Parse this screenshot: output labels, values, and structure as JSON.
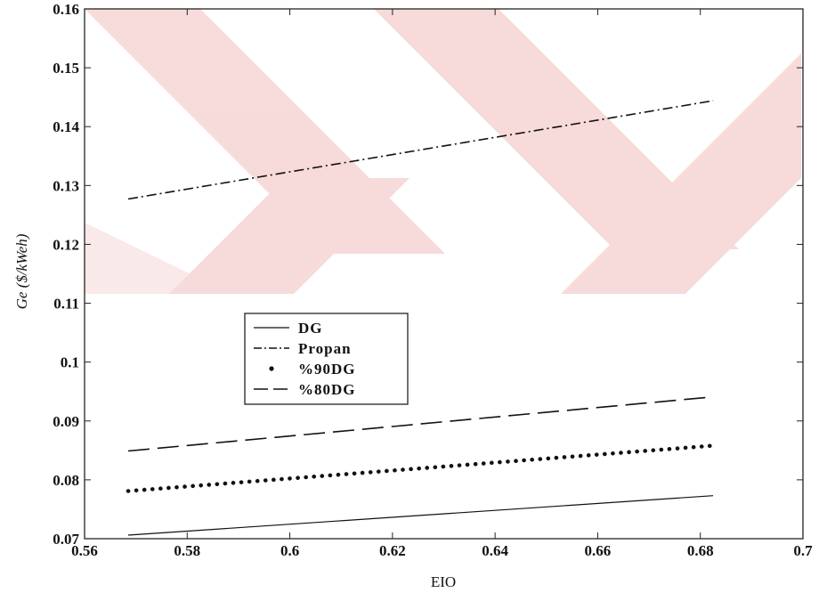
{
  "chart_data": {
    "type": "line",
    "xlabel": "EIO",
    "ylabel": "Ge ($/kWeh)",
    "xlim": [
      0.56,
      0.7
    ],
    "ylim": [
      0.07,
      0.16
    ],
    "xticks": [
      "0.56",
      "0.58",
      "0.6",
      "0.62",
      "0.64",
      "0.66",
      "0.68",
      "0.7"
    ],
    "yticks": [
      "0.07",
      "0.08",
      "0.09",
      "0.1",
      "0.11",
      "0.12",
      "0.13",
      "0.14",
      "0.15",
      "0.16"
    ],
    "grid": false,
    "legend_position": "center-left",
    "series": [
      {
        "name": "DG",
        "style": "solid",
        "x": [
          0.5685,
          0.6825
        ],
        "y": [
          0.0706,
          0.0773
        ]
      },
      {
        "name": "Propan",
        "style": "dashdot",
        "x": [
          0.5685,
          0.6825
        ],
        "y": [
          0.1277,
          0.1444
        ]
      },
      {
        "name": "%90DG",
        "style": "dotted",
        "x": [
          0.5685,
          0.6825
        ],
        "y": [
          0.0781,
          0.0858
        ]
      },
      {
        "name": "%80DG",
        "style": "dashed",
        "x": [
          0.5685,
          0.6825
        ],
        "y": [
          0.0849,
          0.0941
        ]
      }
    ]
  }
}
